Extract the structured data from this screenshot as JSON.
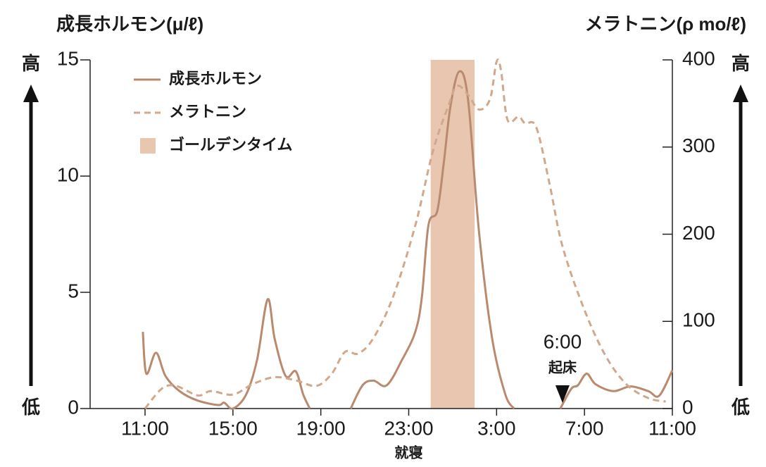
{
  "chart_data": {
    "type": "line",
    "y_label": "成長ホルモン(μ/ℓ)",
    "y2_label": "メラトニン(ρ mo/ℓ)",
    "high_label": "高",
    "low_label": "低",
    "xlim": [
      -2.5,
      24
    ],
    "xticks": [
      {
        "value": 0,
        "label": "11:00"
      },
      {
        "value": 4,
        "label": "15:00"
      },
      {
        "value": 8,
        "label": "19:00"
      },
      {
        "value": 12,
        "label": "23:00"
      },
      {
        "value": 16,
        "label": "3:00"
      },
      {
        "value": 20,
        "label": "7:00"
      },
      {
        "value": 24,
        "label": "11:00"
      }
    ],
    "ylim": [
      0,
      15
    ],
    "yticks": [
      0,
      5,
      10,
      15
    ],
    "y2lim": [
      0,
      400
    ],
    "y2ticks": [
      0,
      100,
      200,
      300,
      400
    ],
    "highlight": {
      "name": "ゴールデンタイム",
      "color": "#e8c6b0",
      "x": [
        13,
        15
      ]
    },
    "sleep": {
      "x": 12,
      "label": "就寝"
    },
    "wake": {
      "x": 19,
      "time": "6:00",
      "label": "起床"
    },
    "series": [
      {
        "name": "成長ホルモン",
        "color": "#b98a6e",
        "dashed": false,
        "x": [
          -0.1,
          0.06,
          0.5,
          0.93,
          1.57,
          2.37,
          3.33,
          3.6,
          4.0,
          4.6,
          5.1,
          5.58,
          5.9,
          6.4,
          6.86,
          7.2,
          7.5,
          null,
          9.36,
          9.9,
          10.4,
          11.0,
          11.7,
          12.3,
          12.6,
          12.9,
          13.3,
          13.6,
          13.9,
          14.3,
          14.7,
          15.2,
          15.8,
          16.4,
          16.8,
          null,
          18.9,
          19.4,
          19.7,
          20.1,
          20.5,
          21.3,
          22.1,
          22.9,
          23.4,
          24.0
        ],
        "values": [
          3.3,
          1.5,
          2.4,
          1.4,
          0.75,
          0.35,
          0.15,
          0.25,
          0,
          0.6,
          2.1,
          4.7,
          3.0,
          1.4,
          1.6,
          0.6,
          0,
          null,
          0,
          1.0,
          1.2,
          1.0,
          2.1,
          3.3,
          4.8,
          7.9,
          8.5,
          10.6,
          13.0,
          14.5,
          13.3,
          7.6,
          3.0,
          0.6,
          0,
          null,
          0,
          0.85,
          1.0,
          1.5,
          1.05,
          0.75,
          0.95,
          0.75,
          0.55,
          1.65
        ]
      },
      {
        "name": "メラトニン",
        "color": "#d2a88c",
        "dashed": true,
        "axis": "y2",
        "x": [
          0,
          0.77,
          1.4,
          2.4,
          3.0,
          4.0,
          4.9,
          5.9,
          6.9,
          7.8,
          8.5,
          9.1,
          9.7,
          10.4,
          11.3,
          12.3,
          13.1,
          13.8,
          14.2,
          14.7,
          15.2,
          15.7,
          16.0,
          16.2,
          16.5,
          17.0,
          17.3,
          17.8,
          18.4,
          19.0,
          20.0,
          20.95,
          21.9,
          22.9,
          23.7
        ],
        "values": [
          0,
          23,
          26,
          15,
          20,
          16,
          28,
          36,
          32,
          26,
          40,
          65,
          63,
          81,
          129,
          210,
          295,
          347,
          370,
          360,
          343,
          355,
          398,
          388,
          331,
          335,
          327,
          323,
          259,
          186,
          113,
          61,
          28,
          12,
          8
        ]
      }
    ]
  }
}
